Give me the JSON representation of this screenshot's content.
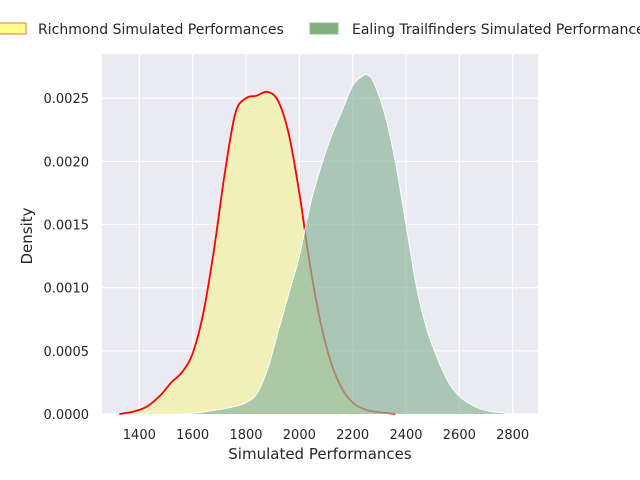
{
  "chart_data": {
    "type": "area",
    "title": "",
    "xlabel": "Simulated Performances",
    "ylabel": "Density",
    "xlim": [
      1260,
      2895
    ],
    "ylim": [
      0,
      0.00285
    ],
    "xticks": [
      1400,
      1600,
      1800,
      2000,
      2200,
      2400,
      2600,
      2800
    ],
    "yticks": [
      0.0,
      0.0005,
      0.001,
      0.0015,
      0.002,
      0.0025
    ],
    "xtick_labels": [
      "1400",
      "1600",
      "1800",
      "2000",
      "2200",
      "2400",
      "2600",
      "2800"
    ],
    "ytick_labels": [
      "0.0000",
      "0.0005",
      "0.0010",
      "0.0015",
      "0.0020",
      "0.0025"
    ],
    "grid": true,
    "legend": {
      "placement": "top-center"
    },
    "series": [
      {
        "name": "Richmond Simulated Performances",
        "fill": "#f0f0b4",
        "line": "#ff0000",
        "x": [
          1325,
          1380,
          1430,
          1480,
          1520,
          1560,
          1600,
          1640,
          1680,
          1720,
          1760,
          1800,
          1840,
          1880,
          1920,
          1960,
          2000,
          2040,
          2080,
          2120,
          2160,
          2200,
          2240,
          2280,
          2320,
          2360
        ],
        "y": [
          0.0,
          2e-05,
          6e-05,
          0.00015,
          0.00025,
          0.00033,
          0.00048,
          0.0008,
          0.0013,
          0.0019,
          0.00238,
          0.0025,
          0.00252,
          0.00255,
          0.00248,
          0.00222,
          0.00175,
          0.00118,
          0.00072,
          0.0004,
          0.0002,
          9e-05,
          4e-05,
          2e-05,
          1e-05,
          0.0
        ]
      },
      {
        "name": "Ealing Trailfinders Simulated Performances",
        "fill": "#8fb89c",
        "line": "#ffffff",
        "x": [
          1560,
          1620,
          1680,
          1740,
          1800,
          1840,
          1880,
          1920,
          1960,
          2000,
          2040,
          2080,
          2120,
          2160,
          2200,
          2240,
          2260,
          2280,
          2320,
          2360,
          2400,
          2440,
          2480,
          2520,
          2560,
          2600,
          2640,
          2680,
          2720,
          2760,
          2800,
          2840
        ],
        "y": [
          0.0,
          1e-05,
          3e-05,
          5e-05,
          9e-05,
          0.00016,
          0.00035,
          0.00065,
          0.00095,
          0.00125,
          0.00165,
          0.00195,
          0.0022,
          0.0024,
          0.0026,
          0.00268,
          0.00268,
          0.00262,
          0.00238,
          0.002,
          0.0015,
          0.001,
          0.00066,
          0.00043,
          0.00025,
          0.00014,
          8e-05,
          4e-05,
          2e-05,
          1e-05,
          0.0,
          0.0
        ]
      }
    ]
  }
}
